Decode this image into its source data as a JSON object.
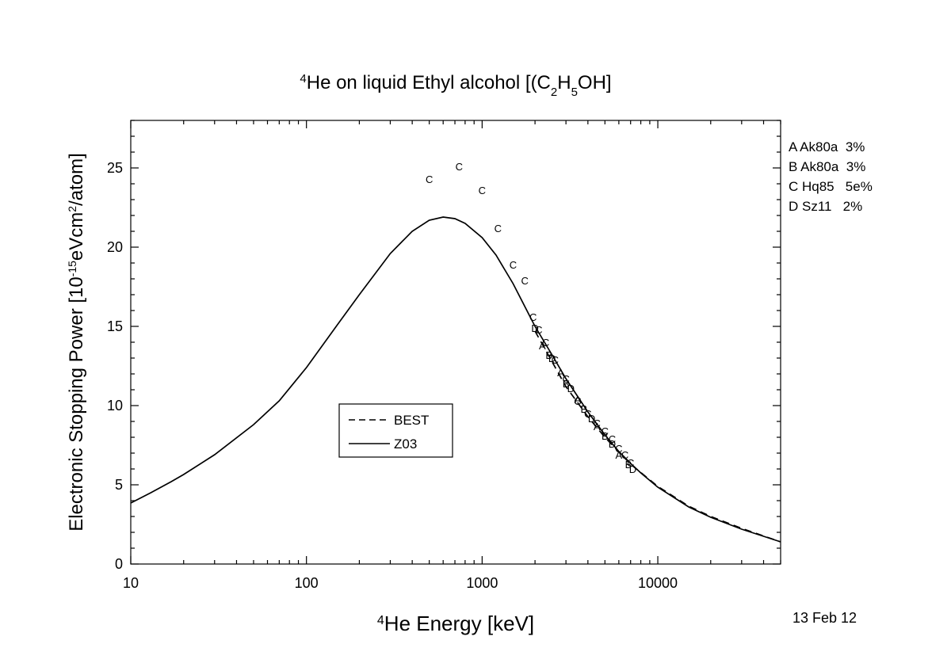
{
  "chart_data": {
    "type": "line",
    "title": {
      "pre": "",
      "sup": "4",
      "main": "He on liquid Ethyl alcohol [(C",
      "sub1": "2",
      "mid": "H",
      "sub2": "5",
      "post": "OH]"
    },
    "xlabel": {
      "sup": "4",
      "main": "He Energy [keV]"
    },
    "ylabel": {
      "pre": "Electronic Stopping Power [10",
      "sup1": "-15",
      "mid": "eVcm",
      "sup2": "2",
      "post": "/atom]"
    },
    "x_scale": "log",
    "xlim": [
      10,
      50000
    ],
    "ylim": [
      0,
      28
    ],
    "x_ticks": [
      10,
      100,
      1000,
      10000
    ],
    "x_tick_labels": [
      "10",
      "100",
      "1000",
      "10000"
    ],
    "y_ticks": [
      0,
      5,
      10,
      15,
      20,
      25
    ],
    "y_tick_labels": [
      "0",
      "5",
      "10",
      "15",
      "20",
      "25"
    ],
    "grid": false,
    "legend_placement": "center-left",
    "series": [
      {
        "name": "BEST",
        "style": "dashed",
        "points": [
          [
            2000,
            14.7
          ],
          [
            3000,
            11.2
          ],
          [
            4000,
            9.3
          ],
          [
            5000,
            8.0
          ],
          [
            7000,
            6.3
          ],
          [
            10000,
            4.9
          ],
          [
            15000,
            3.65
          ],
          [
            20000,
            3.0
          ],
          [
            30000,
            2.25
          ],
          [
            50000,
            1.4
          ]
        ]
      },
      {
        "name": "Z03",
        "style": "solid",
        "points": [
          [
            10,
            3.85
          ],
          [
            13,
            4.5
          ],
          [
            17,
            5.2
          ],
          [
            20,
            5.65
          ],
          [
            30,
            6.9
          ],
          [
            50,
            8.8
          ],
          [
            70,
            10.3
          ],
          [
            100,
            12.4
          ],
          [
            150,
            15.1
          ],
          [
            200,
            17.0
          ],
          [
            300,
            19.6
          ],
          [
            400,
            21.0
          ],
          [
            500,
            21.7
          ],
          [
            600,
            21.9
          ],
          [
            700,
            21.8
          ],
          [
            800,
            21.5
          ],
          [
            1000,
            20.6
          ],
          [
            1200,
            19.5
          ],
          [
            1500,
            17.7
          ],
          [
            2000,
            15.0
          ],
          [
            2500,
            13.2
          ],
          [
            3000,
            11.7
          ],
          [
            4000,
            9.6
          ],
          [
            5000,
            8.15
          ],
          [
            6000,
            7.1
          ],
          [
            7000,
            6.35
          ],
          [
            8000,
            5.75
          ],
          [
            10000,
            4.85
          ],
          [
            15000,
            3.6
          ],
          [
            20000,
            2.95
          ],
          [
            30000,
            2.2
          ],
          [
            50000,
            1.4
          ]
        ]
      }
    ],
    "datasets": [
      {
        "label": "A Ak80a  3%",
        "marker": "A",
        "points": [
          [
            2200,
            13.8
          ],
          [
            2800,
            12.1
          ],
          [
            3500,
            10.4
          ],
          [
            4500,
            8.7
          ],
          [
            6000,
            6.9
          ]
        ]
      },
      {
        "label": "B Ak80a  3%",
        "marker": "B",
        "points": [
          [
            2400,
            13.2
          ],
          [
            3000,
            11.4
          ],
          [
            3800,
            9.8
          ],
          [
            5000,
            8.1
          ],
          [
            6800,
            6.3
          ]
        ]
      },
      {
        "label": "C Hq85   5e%",
        "marker": "C",
        "points": [
          [
            500,
            24.3
          ],
          [
            740,
            25.1
          ],
          [
            1000,
            23.6
          ],
          [
            1230,
            21.2
          ],
          [
            1500,
            18.9
          ],
          [
            1750,
            17.9
          ],
          [
            1950,
            15.6
          ],
          [
            2100,
            14.8
          ],
          [
            2300,
            14.0
          ],
          [
            2600,
            12.9
          ],
          [
            3000,
            11.7
          ],
          [
            3500,
            10.3
          ],
          [
            4000,
            9.5
          ],
          [
            4500,
            8.9
          ],
          [
            5000,
            8.4
          ],
          [
            5500,
            7.9
          ],
          [
            6000,
            7.3
          ],
          [
            6500,
            6.9
          ],
          [
            7000,
            6.4
          ]
        ]
      },
      {
        "label": "D Sz11   2%",
        "marker": "D",
        "points": [
          [
            2000,
            14.9
          ],
          [
            2500,
            13.0
          ],
          [
            3200,
            11.1
          ],
          [
            4200,
            9.2
          ],
          [
            5500,
            7.6
          ],
          [
            7200,
            6.0
          ]
        ]
      }
    ]
  },
  "legend_right": [
    "A Ak80a  3%",
    "B Ak80a  3%",
    "C Hq85   5e%",
    "D Sz11   2%"
  ],
  "date_label": "13 Feb 12"
}
